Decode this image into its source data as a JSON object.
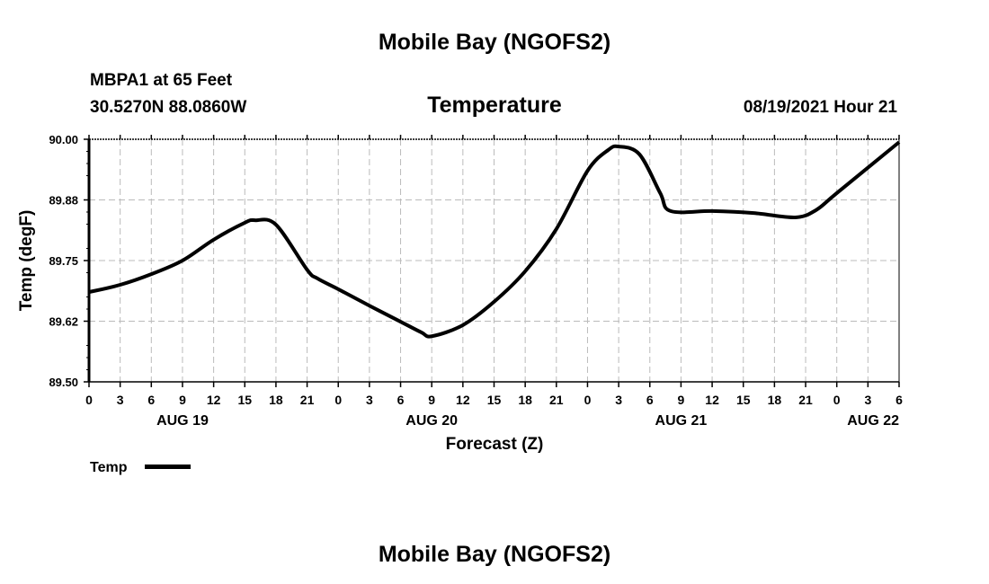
{
  "header": {
    "title": "Mobile Bay (NGOFS2)",
    "station": "MBPA1 at 65 Feet",
    "coords": "30.5270N  88.0860W",
    "datetime": "08/19/2021 Hour 21",
    "footer_title": "Mobile Bay (NGOFS2)"
  },
  "chart_data": {
    "type": "line",
    "title": "Temperature",
    "xlabel": "Forecast (Z)",
    "ylabel": "Temp (degF)",
    "ylim": [
      89.5,
      90.0
    ],
    "xlim_hours": [
      0,
      78
    ],
    "grid": true,
    "yticks": [
      90.0,
      89.875,
      89.75,
      89.625,
      89.5
    ],
    "ytick_labels": [
      "90.00",
      "89.88",
      "89.75",
      "89.62",
      "89.50"
    ],
    "xtick_labels": [
      "0",
      "3",
      "6",
      "9",
      "12",
      "15",
      "18",
      "21",
      "0",
      "3",
      "6",
      "9",
      "12",
      "15",
      "18",
      "21",
      "0",
      "3",
      "6",
      "9",
      "12",
      "15",
      "18",
      "21",
      "0",
      "3",
      "6"
    ],
    "date_labels": [
      {
        "label": "AUG 19",
        "hour": 9
      },
      {
        "label": "AUG 20",
        "hour": 33
      },
      {
        "label": "AUG 21",
        "hour": 57
      },
      {
        "label": "AUG 22",
        "hour": 78
      }
    ],
    "legend": {
      "label": "Temp",
      "placement": "bottom-left"
    },
    "series": [
      {
        "name": "Temp",
        "color": "#000000",
        "x_hours": [
          0,
          3,
          6,
          9,
          12,
          15,
          16,
          18,
          21,
          22,
          24,
          27,
          30,
          32,
          33,
          36,
          39,
          42,
          45,
          48,
          50,
          51,
          53,
          55,
          56,
          60,
          64,
          68,
          70,
          72,
          78
        ],
        "values": [
          89.685,
          89.7,
          89.722,
          89.75,
          89.793,
          89.828,
          89.833,
          89.824,
          89.731,
          89.713,
          89.691,
          89.657,
          89.624,
          89.602,
          89.594,
          89.617,
          89.665,
          89.728,
          89.815,
          89.935,
          89.978,
          89.985,
          89.969,
          89.889,
          89.852,
          89.852,
          89.848,
          89.839,
          89.854,
          89.889,
          89.994
        ]
      }
    ]
  }
}
